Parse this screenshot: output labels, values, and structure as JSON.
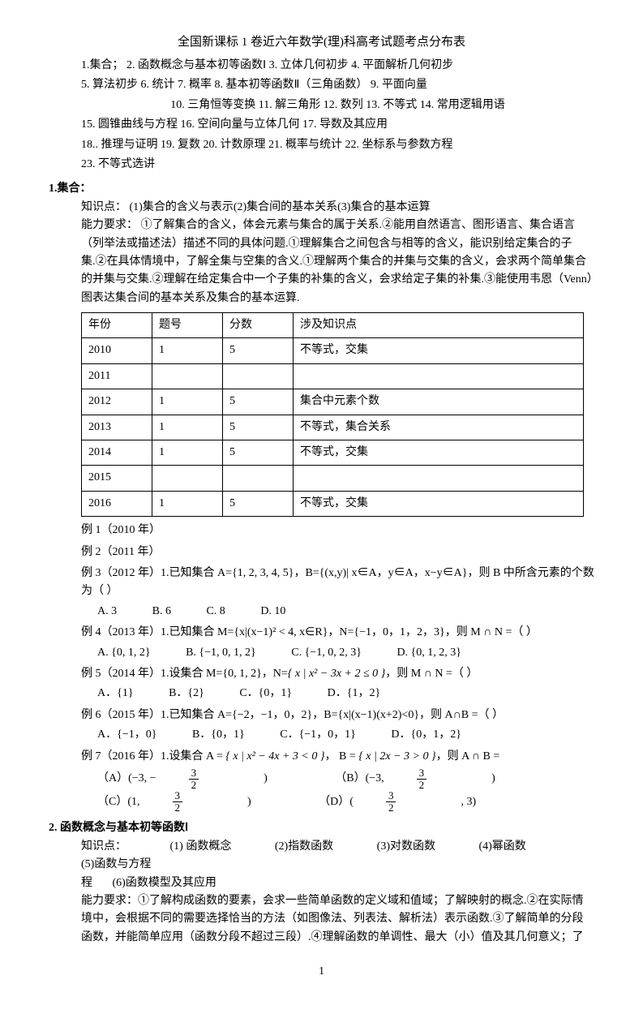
{
  "title": "全国新课标 1 卷近六年数学(理)科高考试题考点分布表",
  "topic_lines": [
    "1.集合；  2. 函数概念与基本初等函数Ⅰ   3. 立体几何初步 4. 平面解析几何初步",
    "5. 算法初步   6. 统计   7. 概率   8. 基本初等函数Ⅱ（三角函数）  9. 平面向量",
    "10. 三角恒等变换   11. 解三角形   12. 数列   13. 不等式   14. 常用逻辑用语",
    "15. 圆锥曲线与方程   16. 空间向量与立体几何   17. 导数及其应用",
    "18.. 推理与证明   19. 复数   20. 计数原理   21. 概率与统计 22. 坐标系与参数方程",
    "23. 不等式选讲"
  ],
  "section1": {
    "heading": "1.集合：",
    "kp_label": "知识点：",
    "kp_text": "(1)集合的含义与表示(2)集合间的基本关系(3)集合的基本运算",
    "ability_label": "能力要求：",
    "ability_text": "①了解集合的含义，体会元素与集合的属于关系.②能用自然语言、图形语言、集合语言（列举法或描述法）描述不同的具体问题.①理解集合之间包含与相等的含义，能识别给定集合的子集.②在具体情境中，了解全集与空集的含义.①理解两个集合的并集与交集的含义，会求两个简单集合的并集与交集.②理解在给定集合中一个子集的补集的含义，会求给定子集的补集.③能使用韦恩（Venn）图表达集合间的基本关系及集合的基本运算.",
    "table": {
      "columns": [
        "年份",
        "题号",
        "分数",
        "涉及知识点"
      ],
      "rows": [
        [
          "2010",
          "1",
          "5",
          "不等式，交集"
        ],
        [
          "2011",
          "",
          "",
          ""
        ],
        [
          "2012",
          "1",
          "5",
          "集合中元素个数"
        ],
        [
          "2013",
          "1",
          "5",
          "不等式，集合关系"
        ],
        [
          "2014",
          "1",
          "5",
          "不等式，交集"
        ],
        [
          "2015",
          "",
          "",
          ""
        ],
        [
          "2016",
          "1",
          "5",
          "不等式，交集"
        ]
      ]
    },
    "examples": {
      "ex1": "例 1（2010 年）",
      "ex2": "例 2（2011 年）",
      "ex3": {
        "stem": "例 3（2012 年）1.已知集合 A={1, 2, 3, 4, 5}，B={(x,y)| x∈A，y∈A，x−y∈A}，则 B 中所含元素的个数为（   ）",
        "choices": [
          "A. 3",
          "B. 6",
          "C. 8",
          "D. 10"
        ]
      },
      "ex4": {
        "stem": "例 4（2013 年）1.已知集合 M={x|(x−1)² < 4, x∈R}，N={−1，0，1，2，3}，则 M ∩ N =（     ）",
        "choices": [
          "A. {0, 1, 2}",
          "B. {−1, 0, 1, 2}",
          "C. {−1, 0, 2, 3}",
          "D. {0, 1, 2, 3}"
        ]
      },
      "ex5": {
        "stem_prefix": "例 5（2014 年）1.设集合 M={0, 1, 2}，N=",
        "set_expr": "{ x | x² − 3x + 2 ≤ 0 }",
        "stem_suffix": "，则 M ∩ N =（       ）",
        "choices": [
          "A．{1}",
          "B．{2}",
          "C．{0，1}",
          "D．{1，2}"
        ]
      },
      "ex6": {
        "stem": "例 6（2015 年）1.已知集合 A={−2，−1，0，2}，B={x|(x−1)(x+2)<0}，则 A∩B =（     ）",
        "choices": [
          "A．{−1，0}",
          "B．{0，1}",
          "C．{−1，0，1}",
          "D．{0，1，2}"
        ]
      },
      "ex7": {
        "stem_prefix": "例 7（2016 年）1.设集合 A = ",
        "A_expr": "{ x | x² − 4x + 3 < 0 }",
        "mid": "， B = ",
        "B_expr": "{ x | 2x − 3 > 0 }",
        "stem_suffix": "，则 A ∩ B =",
        "choice_A_pre": "（A）(−3, −",
        "choice_A_post": ")",
        "choice_B_pre": "（B）(−3, ",
        "choice_B_post": ")",
        "choice_C_pre": "（C）(1, ",
        "choice_C_post": ")",
        "choice_D_pre": "（D）(",
        "choice_D_post": ", 3)",
        "frac_num": "3",
        "frac_den": "2"
      }
    }
  },
  "section2": {
    "heading": "2. 函数概念与基本初等函数Ⅰ",
    "kp_label": "知识点：",
    "kp_items": [
      "(1) 函数概念",
      "(2)指数函数",
      "(3)对数函数",
      "(4)幂函数",
      "(5)函数与方程",
      "(6)函数模型及其应用"
    ],
    "ability_label": "能力要求：",
    "ability_text": "①了解构成函数的要素，会求一些简单函数的定义域和值域；了解映射的概念.②在实际情境中，会根据不同的需要选择恰当的方法（如图像法、列表法、解析法）表示函数.③了解简单的分段函数，并能简单应用（函数分段不超过三段）.④理解函数的单调性、最大（小）值及其几何意义；了"
  },
  "page_number": "1"
}
